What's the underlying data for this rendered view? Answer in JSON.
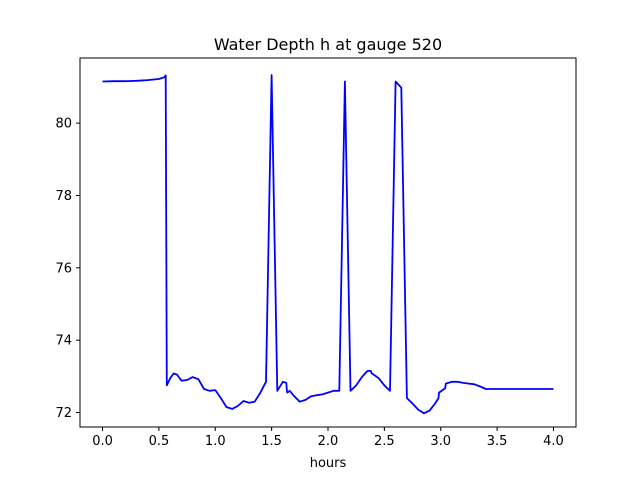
{
  "chart_data": {
    "type": "line",
    "title": "Water Depth h at gauge 520",
    "xlabel": "hours",
    "ylabel": "",
    "xlim": [
      -0.2,
      4.2
    ],
    "ylim": [
      71.6,
      81.8
    ],
    "xticks": [
      0.0,
      0.5,
      1.0,
      1.5,
      2.0,
      2.5,
      3.0,
      3.5,
      4.0
    ],
    "xtick_labels": [
      "0.0",
      "0.5",
      "1.0",
      "1.5",
      "2.0",
      "2.5",
      "3.0",
      "3.5",
      "4.0"
    ],
    "yticks": [
      72,
      74,
      76,
      78,
      80
    ],
    "ytick_labels": [
      "72",
      "74",
      "76",
      "78",
      "80"
    ],
    "grid": false,
    "legend": "none",
    "series": [
      {
        "color": "#0000ff",
        "x": [
          0.0,
          0.1,
          0.2,
          0.3,
          0.4,
          0.5,
          0.55,
          0.56,
          0.57,
          0.6,
          0.63,
          0.66,
          0.7,
          0.75,
          0.8,
          0.85,
          0.9,
          0.95,
          1.0,
          1.05,
          1.1,
          1.15,
          1.2,
          1.25,
          1.3,
          1.35,
          1.4,
          1.45,
          1.5,
          1.55,
          1.6,
          1.63,
          1.635,
          1.64,
          1.66,
          1.7,
          1.75,
          1.8,
          1.85,
          1.9,
          1.95,
          2.0,
          2.05,
          2.1,
          2.15,
          2.2,
          2.25,
          2.3,
          2.35,
          2.38,
          2.385,
          2.39,
          2.45,
          2.5,
          2.55,
          2.6,
          2.65,
          2.7,
          2.75,
          2.8,
          2.85,
          2.9,
          2.95,
          2.98,
          2.985,
          3.04,
          3.045,
          3.1,
          3.15,
          3.2,
          3.25,
          3.3,
          3.35,
          3.4,
          3.45,
          3.5,
          3.55,
          3.6,
          3.65,
          3.7,
          3.75,
          3.8,
          3.85,
          3.9,
          3.95,
          4.0
        ],
        "y": [
          81.15,
          81.16,
          81.16,
          81.17,
          81.19,
          81.22,
          81.27,
          81.32,
          72.75,
          72.95,
          73.08,
          73.05,
          72.88,
          72.9,
          72.98,
          72.92,
          72.65,
          72.6,
          72.62,
          72.4,
          72.15,
          72.1,
          72.18,
          72.32,
          72.27,
          72.3,
          72.55,
          72.85,
          81.33,
          72.6,
          72.85,
          72.82,
          72.6,
          72.55,
          72.6,
          72.45,
          72.3,
          72.35,
          72.45,
          72.48,
          72.5,
          72.55,
          72.6,
          72.6,
          81.15,
          72.6,
          72.75,
          72.98,
          73.15,
          73.15,
          73.1,
          73.08,
          72.95,
          72.75,
          72.6,
          81.15,
          80.98,
          72.4,
          72.25,
          72.08,
          71.98,
          72.05,
          72.25,
          72.4,
          72.55,
          72.67,
          72.8,
          72.85,
          72.85,
          72.82,
          72.8,
          72.78,
          72.72,
          72.65,
          72.65,
          72.65,
          72.65,
          72.65,
          72.65,
          72.65,
          72.65,
          72.65,
          72.65,
          72.65,
          72.65,
          72.65
        ]
      }
    ]
  }
}
